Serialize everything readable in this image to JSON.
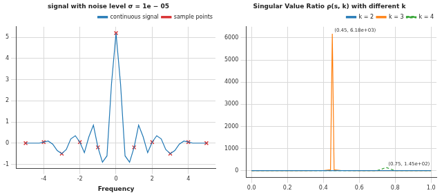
{
  "chart_data": [
    {
      "type": "line",
      "title": "signal with noise level σ = 1e − 05",
      "x_label": "Frequency",
      "xlim": [
        -5.5,
        5.5
      ],
      "xticks": [
        -4,
        -2,
        0,
        2,
        4
      ],
      "ylim": [
        -1.2,
        5.5
      ],
      "yticks": [
        -1,
        0,
        1,
        2,
        3,
        4,
        5
      ],
      "grid": true,
      "legend": "upper right",
      "series": [
        {
          "name": "continuous signal",
          "color": "#1f77b4",
          "type": "line",
          "x": [
            -5,
            -4.75,
            -4.5,
            -4.25,
            -4,
            -3.75,
            -3.5,
            -3.25,
            -3,
            -2.75,
            -2.5,
            -2.25,
            -2,
            -1.75,
            -1.5,
            -1.25,
            -1,
            -0.75,
            -0.5,
            -0.25,
            0,
            0.25,
            0.5,
            0.75,
            1,
            1.25,
            1.5,
            1.75,
            2,
            2.25,
            2.5,
            2.75,
            3,
            3.25,
            3.5,
            3.75,
            4,
            4.25,
            4.5,
            4.75,
            5
          ],
          "values": [
            0,
            0,
            0,
            0,
            0.05,
            0.1,
            -0.05,
            -0.35,
            -0.5,
            -0.3,
            0.2,
            0.35,
            0.05,
            -0.45,
            0.3,
            0.85,
            -0.2,
            -0.9,
            -0.6,
            2.8,
            5.2,
            2.8,
            -0.6,
            -0.9,
            -0.2,
            0.85,
            0.3,
            -0.45,
            0.05,
            0.35,
            0.2,
            -0.3,
            -0.5,
            -0.35,
            -0.05,
            0.1,
            0.05,
            0,
            0,
            0,
            0
          ]
        },
        {
          "name": "sample points",
          "color": "#d62728",
          "type": "scatter",
          "marker": "x",
          "x": [
            -5,
            -4,
            -3,
            -2,
            -1,
            0,
            1,
            2,
            3,
            4,
            5
          ],
          "values": [
            0,
            0.05,
            -0.5,
            0.05,
            -0.2,
            5.2,
            -0.2,
            0.05,
            -0.5,
            0.05,
            0
          ]
        }
      ]
    },
    {
      "type": "line",
      "title": "Singular Value Ratio ρ(s, k) with different k",
      "xlim": [
        -0.03,
        1.03
      ],
      "xticks": [
        {
          "value": 0,
          "label": "0.0"
        },
        {
          "value": 0.2,
          "label": "0.2"
        },
        {
          "value": 0.4,
          "label": "0.4"
        },
        {
          "value": 0.6,
          "label": "0.6"
        },
        {
          "value": 0.8,
          "label": "0.8"
        },
        {
          "value": 1,
          "label": "1.0"
        }
      ],
      "ylim": [
        -300,
        6500
      ],
      "yticks": [
        0,
        1000,
        2000,
        3000,
        4000,
        5000,
        6000
      ],
      "grid": true,
      "legend": "upper right",
      "x": [
        0,
        0.1,
        0.2,
        0.3,
        0.4,
        0.44,
        0.45,
        0.46,
        0.5,
        0.6,
        0.7,
        0.75,
        0.8,
        0.9,
        1.0
      ],
      "series": [
        {
          "name": "k = 2",
          "color": "#1f77b4",
          "values": [
            2,
            2,
            3,
            3,
            4,
            5,
            6,
            5,
            4,
            3,
            3,
            3,
            3,
            2,
            2
          ]
        },
        {
          "name": "k = 3",
          "color": "#ff7f0e",
          "values": [
            3,
            3,
            4,
            5,
            8,
            40,
            6180,
            40,
            8,
            5,
            4,
            4,
            3,
            3,
            3
          ]
        },
        {
          "name": "k = 4",
          "color": "#2ca02c",
          "line_style": "dashed",
          "values": [
            2,
            2,
            2,
            3,
            3,
            4,
            4,
            4,
            3,
            3,
            5,
            145,
            5,
            3,
            2
          ]
        }
      ],
      "annotations": [
        {
          "x": 0.45,
          "y": 6180,
          "text": "(0.45, 6.18e+03)"
        },
        {
          "x": 0.75,
          "y": 145,
          "text": "(0.75, 1.45e+02)"
        }
      ]
    }
  ]
}
